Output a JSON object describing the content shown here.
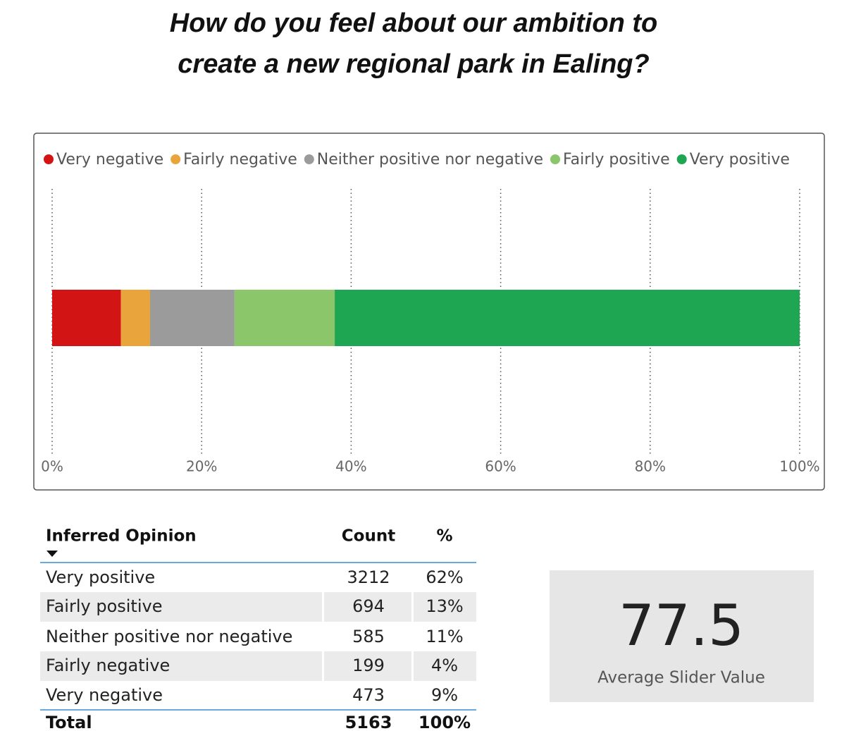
{
  "title": [
    "How do you feel about our ambition to",
    "create a new regional park in Ealing?"
  ],
  "chart_data": {
    "type": "stacked-bar-horizontal",
    "categories": [
      null
    ],
    "series": [
      {
        "name": "Very negative",
        "color": "#d21414",
        "values": [
          9.2
        ]
      },
      {
        "name": "Fairly negative",
        "color": "#e9a53b",
        "values": [
          3.9
        ]
      },
      {
        "name": "Neither positive nor negative",
        "color": "#9b9b9b",
        "values": [
          11.3
        ]
      },
      {
        "name": "Fairly positive",
        "color": "#8cc66b",
        "values": [
          13.4
        ]
      },
      {
        "name": "Very positive",
        "color": "#1fa652",
        "values": [
          62.2
        ]
      }
    ],
    "xlim": [
      0,
      100
    ],
    "xticks": [
      {
        "value": 0,
        "label": "0%"
      },
      {
        "value": 20,
        "label": "20%"
      },
      {
        "value": 40,
        "label": "40%"
      },
      {
        "value": 60,
        "label": "60%"
      },
      {
        "value": 80,
        "label": "80%"
      },
      {
        "value": 100,
        "label": "100%"
      }
    ],
    "grid": true,
    "legend": "top-left"
  },
  "table": {
    "columns": [
      "Inferred Opinion",
      "Count",
      "%"
    ],
    "rows": [
      [
        "Very positive",
        3212,
        "62%"
      ],
      [
        "Fairly positive",
        694,
        "13%"
      ],
      [
        "Neither positive nor negative",
        585,
        "11%"
      ],
      [
        "Fairly negative",
        199,
        "4%"
      ],
      [
        "Very negative",
        473,
        "9%"
      ]
    ],
    "total": [
      "Total",
      5163,
      "100%"
    ]
  },
  "card": {
    "value": 77.5,
    "label": "Average Slider Value"
  }
}
